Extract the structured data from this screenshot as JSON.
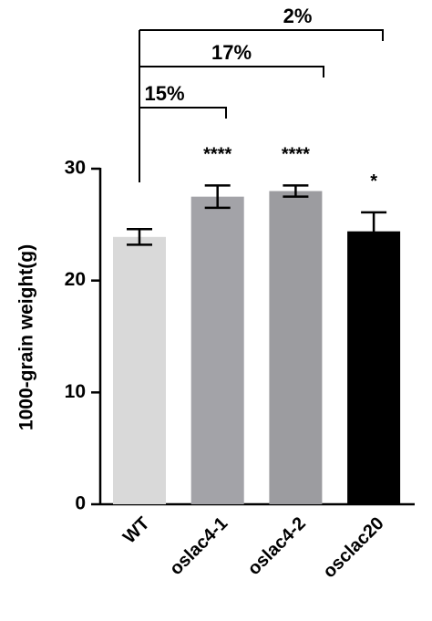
{
  "chart_data": {
    "type": "bar",
    "y_label": "1000-grain weight(g)",
    "categories": [
      "WT",
      "oslac4-1",
      "oslac4-2",
      "osclac20"
    ],
    "values": [
      23.9,
      27.5,
      28.0,
      24.4
    ],
    "errors": [
      0.7,
      1.0,
      0.5,
      1.7
    ],
    "colors": [
      "#d9d9d9",
      "#a3a3a8",
      "#9c9ca0",
      "#000000"
    ],
    "significance": [
      null,
      "****",
      "****",
      "*"
    ],
    "brackets": [
      "15%",
      "17%",
      "2%"
    ],
    "ylim": [
      0,
      30
    ],
    "yticks": [
      0,
      10,
      20,
      30
    ]
  }
}
